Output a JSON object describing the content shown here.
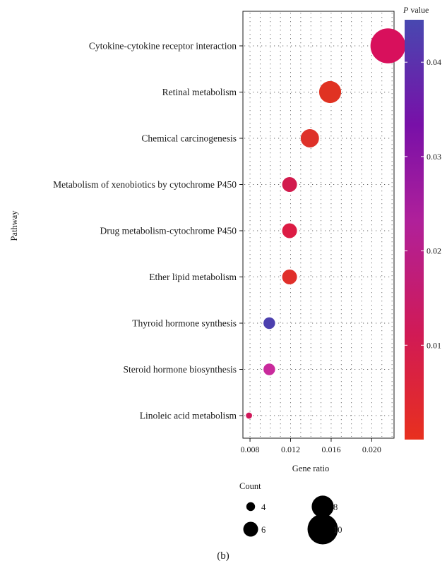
{
  "chart_data": {
    "type": "scatter",
    "subtype": "bubble",
    "xlabel": "Gene ratio",
    "ylabel": "Pathway",
    "xlim": [
      0.0073,
      0.0222
    ],
    "x_ticks": [
      "0.008",
      "0.012",
      "0.016",
      "0.020"
    ],
    "x_tick_values": [
      0.008,
      0.012,
      0.016,
      0.02
    ],
    "grid": "dotted",
    "points": [
      {
        "pathway": "Cytokine-cytokine receptor interaction",
        "gene_ratio": 0.0216,
        "count": 11,
        "p_value": 0.024,
        "color": "#d8105c"
      },
      {
        "pathway": "Retinal metabolism",
        "gene_ratio": 0.0159,
        "count": 8,
        "p_value": 0.004,
        "color": "#e03222"
      },
      {
        "pathway": "Chemical carcinogenesis",
        "gene_ratio": 0.0139,
        "count": 7,
        "p_value": 0.006,
        "color": "#de3129"
      },
      {
        "pathway": "Metabolism of xenobiotics by cytochrome P450",
        "gene_ratio": 0.0119,
        "count": 6,
        "p_value": 0.016,
        "color": "#d21b4d"
      },
      {
        "pathway": "Drug metabolism-cytochrome P450",
        "gene_ratio": 0.0119,
        "count": 6,
        "p_value": 0.011,
        "color": "#dc1c44"
      },
      {
        "pathway": "Ether lipid metabolism",
        "gene_ratio": 0.0119,
        "count": 6,
        "p_value": 0.006,
        "color": "#e02f2a"
      },
      {
        "pathway": "Thyroid hormone synthesis",
        "gene_ratio": 0.0099,
        "count": 5,
        "p_value": 0.041,
        "color": "#4c3fae"
      },
      {
        "pathway": "Steroid hormone biosynthesis",
        "gene_ratio": 0.0099,
        "count": 5,
        "p_value": 0.024,
        "color": "#c92a9c"
      },
      {
        "pathway": "Linoleic acid metabolism",
        "gene_ratio": 0.0079,
        "count": 3,
        "p_value": 0.018,
        "color": "#d0185a"
      }
    ],
    "colorbar": {
      "title_italic": "P",
      "title_rest": " value",
      "ticks": [
        "0.04",
        "0.03",
        "0.02",
        "0.01"
      ],
      "tick_values": [
        0.04,
        0.03,
        0.02,
        0.01
      ],
      "range": [
        0.0,
        0.0445
      ],
      "colors_bottom_to_top": [
        "#e8301e",
        "#d11a55",
        "#b0209a",
        "#7810a8",
        "#4848b0"
      ]
    },
    "size_legend": {
      "title": "Count",
      "entries": [
        {
          "label": "4",
          "count": 4
        },
        {
          "label": "6",
          "count": 6
        },
        {
          "label": "8",
          "count": 8
        },
        {
          "label": "10",
          "count": 10
        }
      ]
    },
    "panel_label": "(b)"
  }
}
